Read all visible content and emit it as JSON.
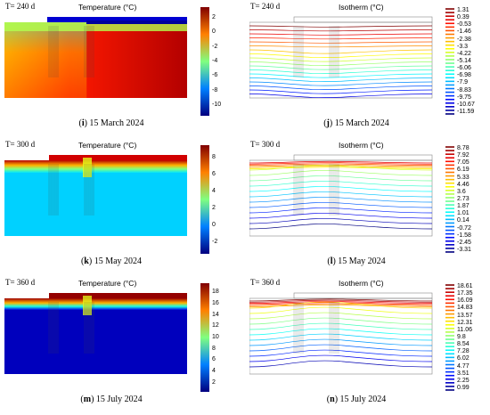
{
  "panels": [
    {
      "id": "i",
      "time": "T= 240 d",
      "title": "Temperature  (°C)",
      "label": "i",
      "date": "15 March 2024",
      "kind": "field",
      "season": "winter",
      "ticks": [
        "2",
        "0",
        "-2",
        "-4",
        "-6",
        "-8",
        "-10"
      ]
    },
    {
      "id": "j",
      "time": "T= 240 d",
      "title": "Isotherm  (°C)",
      "label": "j",
      "date": "15 March 2024",
      "kind": "iso",
      "season": "winter",
      "ticks": [
        "1.31",
        "0.39",
        "-0.53",
        "-1.46",
        "-2.38",
        "-3.3",
        "-4.22",
        "-5.14",
        "-6.06",
        "-6.98",
        "-7.9",
        "-8.83",
        "-9.75",
        "-10.67",
        "-11.59"
      ]
    },
    {
      "id": "k",
      "time": "T= 300 d",
      "title": "Temperature  (°C)",
      "label": "k",
      "date": "15 May 2024",
      "kind": "field",
      "season": "spring",
      "ticks": [
        "8",
        "6",
        "4",
        "2",
        "0",
        "-2"
      ]
    },
    {
      "id": "l",
      "time": "T= 300 d",
      "title": "Isotherm  (°C)",
      "label": "l",
      "date": "15 May 2024",
      "kind": "iso",
      "season": "spring",
      "ticks": [
        "8.78",
        "7.92",
        "7.05",
        "6.19",
        "5.33",
        "4.46",
        "3.6",
        "2.73",
        "1.87",
        "1.01",
        "0.14",
        "-0.72",
        "-1.58",
        "-2.45",
        "-3.31"
      ]
    },
    {
      "id": "m",
      "time": "T= 360 d",
      "title": "Temperature  (°C)",
      "label": "m",
      "date": "15 July 2024",
      "kind": "field",
      "season": "summer",
      "ticks": [
        "18",
        "16",
        "14",
        "12",
        "10",
        "8",
        "6",
        "4",
        "2"
      ]
    },
    {
      "id": "n",
      "time": "T= 360 d",
      "title": "Isotherm  (°C)",
      "label": "n",
      "date": "15 July 2024",
      "kind": "iso",
      "season": "summer",
      "ticks": [
        "18.61",
        "17.35",
        "16.09",
        "14.83",
        "13.57",
        "12.31",
        "11.06",
        "9.8",
        "8.54",
        "7.28",
        "6.02",
        "4.77",
        "3.51",
        "2.25",
        "0.99"
      ]
    }
  ],
  "caption_sep": ") ",
  "colors": {
    "red": "#b40000",
    "yellow": "#f5e000",
    "cyan": "#00d0e0",
    "blue": "#0010b0",
    "frame": "#555555"
  }
}
